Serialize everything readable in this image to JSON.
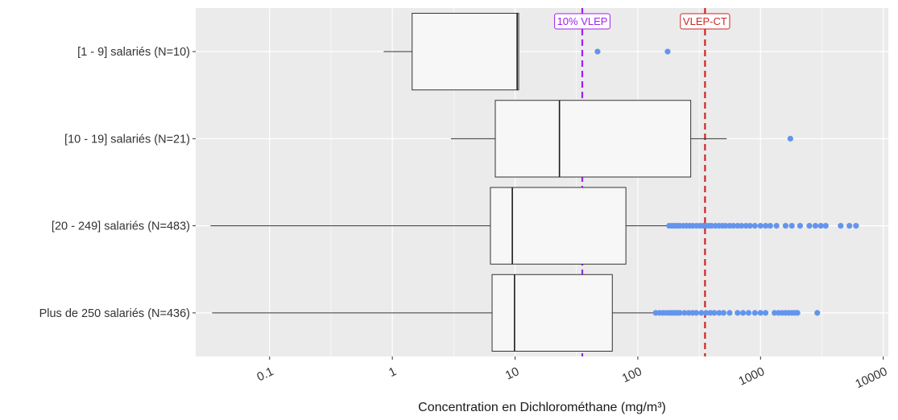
{
  "chart_data": {
    "type": "boxplot",
    "orientation": "horizontal",
    "xlabel": "Concentration en Dichlorométhane (mg/m³)",
    "x_scale": "log10",
    "xlim": [
      0.025,
      11000
    ],
    "x_ticks": [
      0.1,
      1,
      10,
      100,
      1000,
      10000
    ],
    "x_tick_labels": [
      "0.1",
      "1",
      "10",
      "100",
      "1000",
      "10000"
    ],
    "grid": true,
    "colors": {
      "panel": "#ebebeb",
      "grid": "#ffffff",
      "box_fill": "#f7f7f7",
      "box_line": "#333333",
      "outlier": "#6495ed",
      "vlep10": "#a020f0",
      "vlepct": "#cd2626"
    },
    "reference_lines": [
      {
        "label": "10% VLEP",
        "value": 35.3,
        "color": "#a020f0"
      },
      {
        "label": "VLEP-CT",
        "value": 353,
        "color": "#cd2626"
      }
    ],
    "categories": [
      {
        "label": "[1 - 9] salariés (N=10)",
        "whisker_low": 0.85,
        "q1": 1.45,
        "median": 10.4,
        "q3": 10.7,
        "whisker_high": 10.8,
        "outliers": [
          47,
          175
        ]
      },
      {
        "label": "[10 - 19] salariés (N=21)",
        "whisker_low": 3.0,
        "q1": 6.9,
        "median": 23,
        "q3": 270,
        "whisker_high": 530,
        "outliers": [
          1750
        ]
      },
      {
        "label": "[20 - 249] salariés (N=483)",
        "whisker_low": 0.033,
        "q1": 6.3,
        "median": 9.5,
        "q3": 80,
        "whisker_high": 175,
        "outliers": [
          180,
          190,
          200,
          210,
          220,
          235,
          250,
          265,
          280,
          300,
          320,
          340,
          360,
          380,
          400,
          430,
          460,
          490,
          520,
          560,
          600,
          650,
          700,
          760,
          820,
          900,
          1000,
          1100,
          1200,
          1350,
          1600,
          1800,
          2100,
          2500,
          2800,
          3100,
          3400,
          4500,
          5300,
          6000
        ]
      },
      {
        "label": "Plus de 250 salariés (N=436)",
        "whisker_low": 0.034,
        "q1": 6.5,
        "median": 9.9,
        "q3": 62,
        "whisker_high": 135,
        "outliers": [
          140,
          150,
          160,
          170,
          180,
          190,
          200,
          210,
          220,
          240,
          260,
          280,
          300,
          330,
          360,
          390,
          420,
          460,
          500,
          560,
          650,
          720,
          800,
          900,
          1000,
          1100,
          1300,
          1400,
          1500,
          1600,
          1700,
          1800,
          1900,
          2000,
          2900
        ]
      }
    ]
  }
}
